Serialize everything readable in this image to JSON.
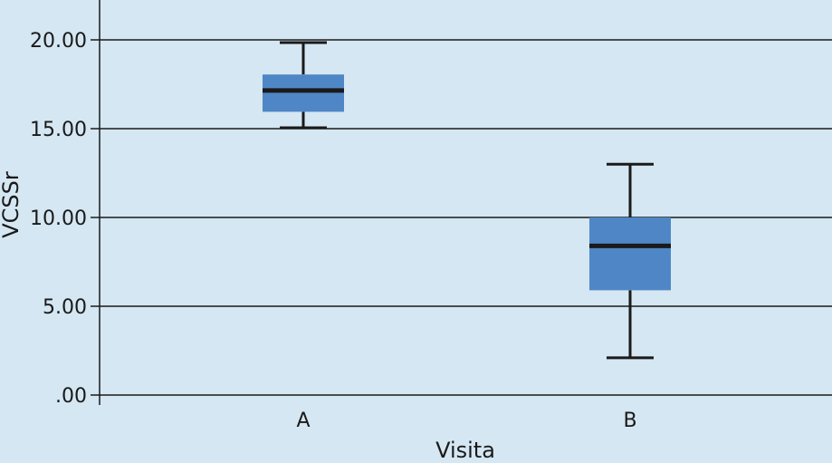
{
  "chart_data": {
    "type": "boxplot",
    "xlabel": "Visita",
    "ylabel": "VCSSr",
    "ylim": [
      0,
      22
    ],
    "y_ticks": [
      {
        "value": 0,
        "label": ".00"
      },
      {
        "value": 5,
        "label": "5.00"
      },
      {
        "value": 10,
        "label": "10.00"
      },
      {
        "value": 15,
        "label": "15.00"
      },
      {
        "value": 20,
        "label": "20.00"
      }
    ],
    "grid": true,
    "categories": [
      "A",
      "B"
    ],
    "boxes": [
      {
        "category": "A",
        "whisker_low": 15.05,
        "q1": 15.95,
        "median": 17.15,
        "q3": 18.05,
        "whisker_high": 19.85
      },
      {
        "category": "B",
        "whisker_low": 2.1,
        "q1": 5.9,
        "median": 8.4,
        "q3": 10.0,
        "whisker_high": 13.0
      }
    ],
    "colors": {
      "background": "#d5e7f2",
      "box_fill": "#4f87c6",
      "line": "#1a1a1a"
    }
  }
}
